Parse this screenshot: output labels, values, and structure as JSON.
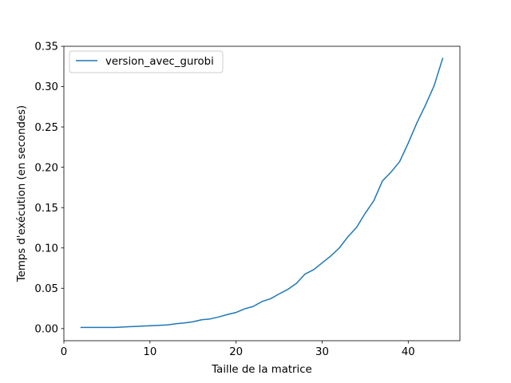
{
  "chart_data": {
    "type": "line",
    "title": "",
    "xlabel": "Taille de la matrice",
    "ylabel": "Temps d'exécution (en secondes)",
    "xlim": [
      0,
      46
    ],
    "ylim": [
      -0.015,
      0.35
    ],
    "xticks": [
      0,
      10,
      20,
      30,
      40
    ],
    "xtick_labels": [
      "0",
      "10",
      "20",
      "30",
      "40"
    ],
    "yticks": [
      0.0,
      0.05,
      0.1,
      0.15,
      0.2,
      0.25,
      0.3,
      0.35
    ],
    "ytick_labels": [
      "0.00",
      "0.05",
      "0.10",
      "0.15",
      "0.20",
      "0.25",
      "0.30",
      "0.35"
    ],
    "grid": false,
    "legend_position": "upper-left",
    "series": [
      {
        "name": "version_avec_gurobi",
        "color": "#1f77b4",
        "x": [
          2,
          3,
          4,
          5,
          6,
          7,
          8,
          9,
          10,
          11,
          12,
          13,
          14,
          15,
          16,
          17,
          18,
          19,
          20,
          21,
          22,
          23,
          24,
          25,
          26,
          27,
          28,
          29,
          30,
          31,
          32,
          33,
          34,
          35,
          36,
          37,
          38,
          39,
          40,
          41,
          42,
          43,
          44
        ],
        "y": [
          0.0015,
          0.0015,
          0.0015,
          0.0015,
          0.0015,
          0.002,
          0.0025,
          0.003,
          0.0035,
          0.004,
          0.0045,
          0.006,
          0.007,
          0.0085,
          0.011,
          0.012,
          0.0145,
          0.0175,
          0.02,
          0.0245,
          0.0275,
          0.0335,
          0.037,
          0.043,
          0.0485,
          0.056,
          0.0675,
          0.073,
          0.0815,
          0.09,
          0.1,
          0.114,
          0.1255,
          0.143,
          0.1585,
          0.183,
          0.194,
          0.207,
          0.23,
          0.255,
          0.277,
          0.301,
          0.335
        ]
      }
    ]
  }
}
